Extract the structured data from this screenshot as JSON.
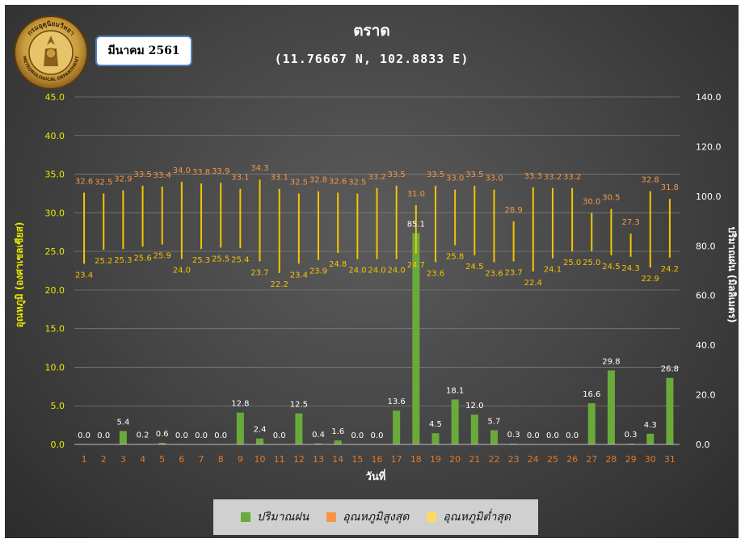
{
  "month_label": "มีนาคม 2561",
  "logo": {
    "text": "กรมอุตุนิยมวิทยา",
    "text_en": "METEOROLOGICAL DEPARTMENT"
  },
  "colors": {
    "rain": "#6aaa3b",
    "tmax": "#f79646",
    "tmin": "#f5c400",
    "left_axis_text": "#e8e800",
    "right_axis_text": "#ffffff",
    "day_labels": "#e07a2a"
  },
  "chart_data": {
    "type": "bar",
    "title": "ตราด",
    "subtitle": "(11.76667 N, 102.8833 E)",
    "xlabel": "วันที่",
    "ylabel_left": "อุณหภูมิ (องศาเซลเซียส)",
    "ylabel_right": "ปริมาณฝน (มิลลิเมตร)",
    "ylim_left": [
      0,
      45
    ],
    "ylim_right": [
      0,
      140
    ],
    "yticks_left": [
      "0.0",
      "5.0",
      "10.0",
      "15.0",
      "20.0",
      "25.0",
      "30.0",
      "35.0",
      "40.0",
      "45.0"
    ],
    "yticks_right": [
      "0.0",
      "20.0",
      "40.0",
      "60.0",
      "80.0",
      "100.0",
      "120.0",
      "140.0"
    ],
    "categories": [
      "1",
      "2",
      "3",
      "4",
      "5",
      "6",
      "7",
      "8",
      "9",
      "10",
      "11",
      "12",
      "13",
      "14",
      "15",
      "16",
      "17",
      "18",
      "19",
      "20",
      "21",
      "22",
      "23",
      "24",
      "25",
      "26",
      "27",
      "28",
      "29",
      "30",
      "31"
    ],
    "series": [
      {
        "name": "ปริมาณฝน",
        "axis": "right",
        "chart": "bar",
        "values": [
          0.0,
          0.0,
          5.4,
          0.2,
          0.6,
          0.0,
          0.0,
          0.0,
          12.8,
          2.4,
          0.0,
          12.5,
          0.4,
          1.6,
          0.0,
          0.0,
          13.6,
          85.1,
          4.5,
          18.1,
          12.0,
          5.7,
          0.3,
          0.0,
          0.0,
          0.0,
          16.6,
          29.8,
          0.3,
          4.3,
          26.8
        ]
      },
      {
        "name": "อุณหภูมิสูงสุด",
        "axis": "left",
        "chart": "range-high",
        "values": [
          32.6,
          32.5,
          32.9,
          33.5,
          33.4,
          34.0,
          33.8,
          33.9,
          33.1,
          34.3,
          33.1,
          32.5,
          32.8,
          32.6,
          32.5,
          33.2,
          33.5,
          31.0,
          33.5,
          33.0,
          33.5,
          33.0,
          28.9,
          33.3,
          33.2,
          33.2,
          30.0,
          30.5,
          27.3,
          32.8,
          31.8
        ]
      },
      {
        "name": "อุณหภูมิต่ำสุด",
        "axis": "left",
        "chart": "range-low",
        "values": [
          23.4,
          25.2,
          25.3,
          25.6,
          25.9,
          24.0,
          25.3,
          25.5,
          25.4,
          23.7,
          22.2,
          23.4,
          23.9,
          24.8,
          24.0,
          24.0,
          24.0,
          24.7,
          23.6,
          25.8,
          24.5,
          23.6,
          23.7,
          22.4,
          24.1,
          25.0,
          25.0,
          24.5,
          24.3,
          22.9,
          24.2
        ]
      }
    ],
    "grid": true,
    "legend_position": "bottom"
  }
}
